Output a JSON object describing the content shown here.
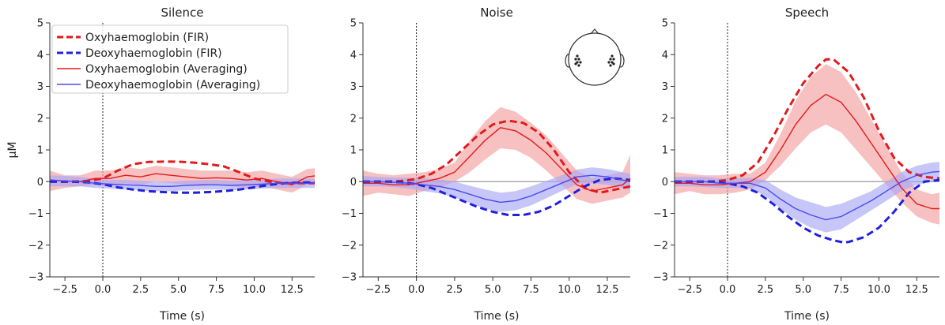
{
  "chart_data": [
    {
      "type": "line",
      "title": "Silence",
      "xlabel": "Time (s)",
      "ylabel": "μM",
      "xlim": [
        -3.5,
        14
      ],
      "ylim": [
        -3,
        5
      ],
      "xticks": [
        "−2.5",
        "0.0",
        "2.5",
        "5.0",
        "7.5",
        "10.0",
        "12.5"
      ],
      "yticks": [
        "−3",
        "−2",
        "−1",
        "0",
        "1",
        "2",
        "3",
        "4",
        "5"
      ],
      "stimulus_onset": 0,
      "zero_line": false,
      "legend_placement": "top-left",
      "series": [
        {
          "name": "Oxyhaemoglobin (FIR)",
          "color": "#e31a1c",
          "style": "dashed",
          "x": [
            -3.5,
            -2,
            -1,
            0,
            1,
            2,
            3,
            4,
            5,
            6,
            7,
            8,
            9,
            10,
            11,
            12,
            13,
            14
          ],
          "y": [
            0.0,
            0.0,
            0.02,
            0.1,
            0.35,
            0.55,
            0.62,
            0.63,
            0.63,
            0.6,
            0.55,
            0.48,
            0.3,
            0.1,
            0.0,
            -0.05,
            -0.05,
            -0.05
          ]
        },
        {
          "name": "Deoxyhaemoglobin (FIR)",
          "color": "#1f1fe0",
          "style": "dashed",
          "x": [
            -3.5,
            -2,
            -1,
            0,
            1,
            2,
            3,
            4,
            5,
            6,
            7,
            8,
            9,
            10,
            11,
            12,
            13,
            14
          ],
          "y": [
            0.0,
            0.0,
            -0.02,
            -0.08,
            -0.18,
            -0.25,
            -0.3,
            -0.33,
            -0.35,
            -0.35,
            -0.33,
            -0.3,
            -0.25,
            -0.18,
            -0.1,
            -0.05,
            -0.03,
            -0.02
          ]
        },
        {
          "name": "Oxyhaemoglobin (Averaging)",
          "color": "#e31a1c",
          "style": "solid",
          "x": [
            -3.5,
            -2.5,
            -1.5,
            -0.5,
            0.5,
            1.5,
            2.5,
            3.5,
            4.5,
            5.5,
            6.5,
            7.5,
            8.5,
            9.5,
            10.5,
            11.5,
            12.5,
            13.5,
            14
          ],
          "y": [
            0.05,
            0.02,
            0.0,
            0.1,
            0.1,
            0.2,
            0.15,
            0.25,
            0.2,
            0.15,
            0.1,
            0.12,
            0.1,
            0.05,
            0.1,
            0.0,
            -0.1,
            0.15,
            0.18
          ],
          "band_lower": [
            -0.3,
            -0.2,
            -0.15,
            -0.1,
            -0.15,
            -0.05,
            -0.1,
            0.0,
            -0.05,
            -0.1,
            -0.15,
            -0.1,
            -0.15,
            -0.2,
            -0.15,
            -0.25,
            -0.35,
            -0.1,
            -0.05
          ],
          "band_upper": [
            0.35,
            0.2,
            0.2,
            0.35,
            0.35,
            0.45,
            0.4,
            0.5,
            0.45,
            0.4,
            0.35,
            0.35,
            0.35,
            0.3,
            0.35,
            0.25,
            0.15,
            0.4,
            0.42
          ]
        },
        {
          "name": "Deoxyhaemoglobin (Averaging)",
          "color": "#4a4aef",
          "style": "solid",
          "x": [
            -3.5,
            -2.5,
            -1.5,
            -0.5,
            0.5,
            1.5,
            2.5,
            3.5,
            4.5,
            5.5,
            6.5,
            7.5,
            8.5,
            9.5,
            10.5,
            11.5,
            12.5,
            13.5,
            14
          ],
          "y": [
            0.05,
            0.02,
            0.0,
            -0.05,
            -0.08,
            -0.1,
            -0.12,
            -0.15,
            -0.15,
            -0.12,
            -0.1,
            -0.1,
            -0.12,
            -0.1,
            -0.08,
            -0.05,
            -0.05,
            -0.05,
            -0.05
          ],
          "band_lower": [
            -0.15,
            -0.15,
            -0.15,
            -0.2,
            -0.22,
            -0.25,
            -0.27,
            -0.3,
            -0.3,
            -0.27,
            -0.25,
            -0.25,
            -0.27,
            -0.25,
            -0.22,
            -0.2,
            -0.2,
            -0.2,
            -0.2
          ],
          "band_upper": [
            0.2,
            0.18,
            0.15,
            0.1,
            0.06,
            0.05,
            0.03,
            0.0,
            0.0,
            0.03,
            0.05,
            0.05,
            0.03,
            0.05,
            0.06,
            0.1,
            0.1,
            0.1,
            0.1
          ]
        }
      ]
    },
    {
      "type": "line",
      "title": "Noise",
      "xlabel": "Time (s)",
      "ylabel": "",
      "xlim": [
        -3.5,
        14
      ],
      "ylim": [
        -3,
        5
      ],
      "xticks": [
        "−2.5",
        "0.0",
        "2.5",
        "5.0",
        "7.5",
        "10.0",
        "12.5"
      ],
      "yticks": [
        "−3",
        "−2",
        "−1",
        "0",
        "1",
        "2",
        "3",
        "4",
        "5"
      ],
      "stimulus_onset": 0,
      "zero_line": true,
      "inset": "head-icon",
      "series": [
        {
          "name": "Oxyhaemoglobin (FIR)",
          "color": "#e31a1c",
          "style": "dashed",
          "x": [
            -3.5,
            -2,
            -1,
            0,
            1,
            2,
            3,
            4,
            5,
            6,
            7,
            8,
            9,
            10,
            11,
            12,
            13,
            14
          ],
          "y": [
            0.0,
            0.0,
            0.02,
            0.08,
            0.25,
            0.55,
            1.0,
            1.45,
            1.8,
            1.92,
            1.85,
            1.55,
            1.0,
            0.3,
            -0.2,
            -0.35,
            -0.25,
            -0.15
          ]
        },
        {
          "name": "Deoxyhaemoglobin (FIR)",
          "color": "#1f1fe0",
          "style": "dashed",
          "x": [
            -3.5,
            -2,
            -1,
            0,
            1,
            2,
            3,
            4,
            5,
            6,
            7,
            8,
            9,
            10,
            11,
            12,
            13,
            14
          ],
          "y": [
            0.0,
            0.0,
            -0.02,
            -0.08,
            -0.2,
            -0.4,
            -0.6,
            -0.8,
            -0.95,
            -1.05,
            -1.05,
            -0.95,
            -0.75,
            -0.45,
            -0.15,
            0.05,
            0.1,
            0.05
          ]
        },
        {
          "name": "Oxyhaemoglobin (Averaging)",
          "color": "#e31a1c",
          "style": "solid",
          "x": [
            -3.5,
            -2.5,
            -1.5,
            -0.5,
            0.5,
            1.5,
            2.5,
            3.5,
            4.5,
            5.5,
            6.5,
            7.5,
            8.5,
            9.5,
            10.5,
            11.5,
            12.5,
            13.5,
            14
          ],
          "y": [
            -0.05,
            -0.05,
            -0.1,
            -0.1,
            0.0,
            0.1,
            0.3,
            0.8,
            1.3,
            1.7,
            1.6,
            1.3,
            0.9,
            0.4,
            -0.1,
            -0.3,
            -0.2,
            -0.1,
            0.1
          ],
          "band_lower": [
            -0.45,
            -0.35,
            -0.4,
            -0.45,
            -0.3,
            -0.2,
            0.0,
            0.3,
            0.7,
            1.05,
            1.0,
            0.75,
            0.35,
            -0.1,
            -0.55,
            -0.7,
            -0.6,
            -0.5,
            -0.35
          ],
          "band_upper": [
            0.35,
            0.25,
            0.2,
            0.25,
            0.3,
            0.4,
            0.6,
            1.3,
            1.9,
            2.35,
            2.2,
            1.85,
            1.45,
            0.9,
            0.35,
            0.1,
            0.2,
            0.3,
            0.85
          ]
        },
        {
          "name": "Deoxyhaemoglobin (Averaging)",
          "color": "#4a4aef",
          "style": "solid",
          "x": [
            -3.5,
            -2.5,
            -1.5,
            -0.5,
            0.5,
            1.5,
            2.5,
            3.5,
            4.5,
            5.5,
            6.5,
            7.5,
            8.5,
            9.5,
            10.5,
            11.5,
            12.5,
            13.5,
            14
          ],
          "y": [
            0.0,
            0.0,
            -0.02,
            -0.05,
            -0.1,
            -0.15,
            -0.25,
            -0.4,
            -0.55,
            -0.65,
            -0.6,
            -0.45,
            -0.25,
            -0.05,
            0.15,
            0.2,
            0.15,
            0.05,
            0.0
          ],
          "band_lower": [
            -0.15,
            -0.15,
            -0.17,
            -0.22,
            -0.3,
            -0.37,
            -0.5,
            -0.67,
            -0.85,
            -0.95,
            -0.9,
            -0.75,
            -0.52,
            -0.3,
            -0.08,
            -0.05,
            -0.1,
            -0.2,
            -0.25
          ],
          "band_upper": [
            0.18,
            0.15,
            0.13,
            0.12,
            0.1,
            0.07,
            0.0,
            -0.13,
            -0.25,
            -0.35,
            -0.3,
            -0.15,
            0.02,
            0.2,
            0.38,
            0.45,
            0.4,
            0.3,
            0.25
          ]
        }
      ]
    },
    {
      "type": "line",
      "title": "Speech",
      "xlabel": "Time (s)",
      "ylabel": "",
      "xlim": [
        -3.5,
        14
      ],
      "ylim": [
        -3,
        5
      ],
      "xticks": [
        "−2.5",
        "0.0",
        "2.5",
        "5.0",
        "7.5",
        "10.0",
        "12.5"
      ],
      "yticks": [
        "−3",
        "−2",
        "−1",
        "0",
        "1",
        "2",
        "3",
        "4",
        "5"
      ],
      "stimulus_onset": 0,
      "zero_line": true,
      "series": [
        {
          "name": "Oxyhaemoglobin (FIR)",
          "color": "#e31a1c",
          "style": "dashed",
          "x": [
            -3.5,
            -2,
            -1,
            0,
            1,
            2,
            3,
            4,
            5,
            6,
            6.5,
            7,
            8,
            9,
            10,
            11,
            12,
            13,
            14
          ],
          "y": [
            0.0,
            0.0,
            0.0,
            0.05,
            0.2,
            0.6,
            1.4,
            2.3,
            3.1,
            3.65,
            3.85,
            3.85,
            3.45,
            2.65,
            1.6,
            0.75,
            0.3,
            0.15,
            0.1
          ]
        },
        {
          "name": "Deoxyhaemoglobin (FIR)",
          "color": "#1f1fe0",
          "style": "dashed",
          "x": [
            -3.5,
            -2,
            -1,
            0,
            1,
            2,
            3,
            4,
            5,
            6,
            7,
            7.7,
            8,
            9,
            10,
            11,
            12,
            13,
            14
          ],
          "y": [
            0.0,
            0.0,
            0.0,
            -0.05,
            -0.15,
            -0.35,
            -0.7,
            -1.1,
            -1.45,
            -1.7,
            -1.85,
            -1.92,
            -1.9,
            -1.75,
            -1.45,
            -0.95,
            -0.35,
            0.0,
            0.05
          ]
        },
        {
          "name": "Oxyhaemoglobin (Averaging)",
          "color": "#e31a1c",
          "style": "solid",
          "x": [
            -3.5,
            -2.5,
            -1.5,
            -0.5,
            0.5,
            1.5,
            2.5,
            3.5,
            4.5,
            5.5,
            6.5,
            7.5,
            8.5,
            9.5,
            10.5,
            11.5,
            12.5,
            13.5,
            14
          ],
          "y": [
            -0.05,
            -0.05,
            -0.1,
            -0.1,
            -0.05,
            0.0,
            0.3,
            1.0,
            1.8,
            2.4,
            2.75,
            2.5,
            1.9,
            1.2,
            0.5,
            -0.2,
            -0.7,
            -0.85,
            -0.85
          ],
          "band_lower": [
            -0.4,
            -0.3,
            -0.4,
            -0.4,
            -0.35,
            -0.25,
            0.05,
            0.5,
            1.05,
            1.55,
            1.8,
            1.55,
            1.0,
            0.45,
            -0.1,
            -0.65,
            -1.1,
            -1.3,
            -1.35
          ],
          "band_upper": [
            0.3,
            0.25,
            0.2,
            0.2,
            0.25,
            0.25,
            0.6,
            1.5,
            2.55,
            3.3,
            3.7,
            3.45,
            2.8,
            1.95,
            1.1,
            0.3,
            -0.25,
            -0.4,
            -0.35
          ]
        },
        {
          "name": "Deoxyhaemoglobin (Averaging)",
          "color": "#4a4aef",
          "style": "solid",
          "x": [
            -3.5,
            -2.5,
            -1.5,
            -0.5,
            0.5,
            1.5,
            2.5,
            3.5,
            4.5,
            5.5,
            6.5,
            7.5,
            8.5,
            9.5,
            10.5,
            11.5,
            12.5,
            13.5,
            14
          ],
          "y": [
            0.0,
            0.0,
            0.0,
            -0.05,
            -0.05,
            -0.05,
            -0.2,
            -0.55,
            -0.85,
            -1.05,
            -1.2,
            -1.1,
            -0.85,
            -0.6,
            -0.3,
            0.0,
            0.2,
            0.3,
            0.32
          ],
          "band_lower": [
            -0.15,
            -0.15,
            -0.17,
            -0.2,
            -0.2,
            -0.22,
            -0.45,
            -0.85,
            -1.2,
            -1.45,
            -1.6,
            -1.5,
            -1.2,
            -0.9,
            -0.6,
            -0.3,
            -0.1,
            0.0,
            0.0
          ],
          "band_upper": [
            0.15,
            0.15,
            0.15,
            0.1,
            0.1,
            0.12,
            0.05,
            -0.25,
            -0.5,
            -0.65,
            -0.8,
            -0.7,
            -0.5,
            -0.3,
            0.0,
            0.3,
            0.5,
            0.6,
            0.62
          ]
        }
      ]
    }
  ],
  "legend": {
    "entries": [
      {
        "label": "Oxyhaemoglobin (FIR)",
        "color": "#e31a1c",
        "style": "dashed"
      },
      {
        "label": "Deoxyhaemoglobin (FIR)",
        "color": "#1f1fe0",
        "style": "dashed"
      },
      {
        "label": "Oxyhaemoglobin (Averaging)",
        "color": "#e31a1c",
        "style": "solid"
      },
      {
        "label": "Deoxyhaemoglobin (Averaging)",
        "color": "#4a4aef",
        "style": "solid"
      }
    ]
  },
  "colors": {
    "oxy": "#e31a1c",
    "oxy_band": "#f4a0a0",
    "deoxy_fir": "#1f1fe0",
    "deoxy_avg": "#4a4aef",
    "deoxy_band": "#a8a8f4",
    "axis": "#333333",
    "zero_line": "#999999"
  },
  "inset_icon": "head-icon"
}
